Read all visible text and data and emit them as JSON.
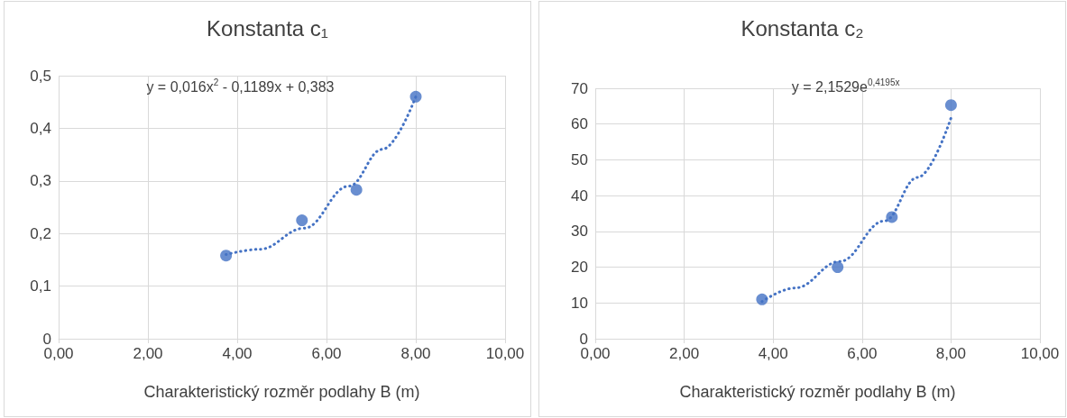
{
  "chart_data": [
    {
      "type": "scatter",
      "title": "Konstanta c₁",
      "xlabel": "Charakteristický rozměr podlahy B (m)",
      "annotations": [
        "y = 0,016x$^{2}$ - 0,1189x + 0,383"
      ],
      "xlim": [
        0,
        10
      ],
      "xticks": [
        {
          "value": 0,
          "label": "0,00"
        },
        {
          "value": 2,
          "label": "2,00"
        },
        {
          "value": 4,
          "label": "4,00"
        },
        {
          "value": 6,
          "label": "6,00"
        },
        {
          "value": 8,
          "label": "8,00"
        },
        {
          "value": 10,
          "label": "10,00"
        }
      ],
      "ylim": [
        0,
        0.5
      ],
      "yticks": [
        0,
        {
          "value": 0.1,
          "label": "0,1"
        },
        {
          "value": 0.2,
          "label": "0,2"
        },
        {
          "value": 0.3,
          "label": "0,3"
        },
        {
          "value": 0.4,
          "label": "0,4"
        },
        {
          "value": 0.5,
          "label": "0,5"
        }
      ],
      "grid": true,
      "marker": "circle",
      "series": [
        {
          "type": "scatter",
          "color": "#4472c4",
          "x": [
            3.75,
            5.45,
            6.67,
            8.0
          ],
          "values": [
            0.158,
            0.225,
            0.283,
            0.46
          ]
        },
        {
          "type": "line",
          "color": "#4472c4",
          "line_style": "dotted",
          "marker": "none",
          "x": [
            3.75,
            4.5,
            5.5,
            6.5,
            7.25,
            8.0
          ],
          "values": [
            0.16,
            0.17,
            0.21,
            0.29,
            0.36,
            0.46
          ]
        }
      ]
    },
    {
      "type": "scatter",
      "title": "Konstanta c₂",
      "xlabel": "Charakteristický rozměr podlahy B (m)",
      "annotations": [
        "y = 2,1529e$^{0,4195x}$"
      ],
      "xlim": [
        0,
        10
      ],
      "xticks": [
        {
          "value": 0,
          "label": "0,00"
        },
        {
          "value": 2,
          "label": "2,00"
        },
        {
          "value": 4,
          "label": "4,00"
        },
        {
          "value": 6,
          "label": "6,00"
        },
        {
          "value": 8,
          "label": "8,00"
        },
        {
          "value": 10,
          "label": "10,00"
        }
      ],
      "ylim": [
        0,
        70
      ],
      "yticks": [
        0,
        10,
        20,
        30,
        40,
        50,
        60,
        70
      ],
      "grid": true,
      "marker": "circle",
      "series": [
        {
          "type": "scatter",
          "color": "#4472c4",
          "x": [
            3.75,
            5.45,
            6.67,
            8.0
          ],
          "values": [
            11,
            20,
            34,
            65.3
          ]
        },
        {
          "type": "line",
          "color": "#4472c4",
          "line_style": "dotted",
          "marker": "none",
          "x": [
            3.75,
            4.5,
            5.5,
            6.5,
            7.25,
            8.0
          ],
          "values": [
            10.4,
            14.2,
            21.6,
            32.9,
            45.1,
            61.7
          ]
        }
      ]
    }
  ]
}
